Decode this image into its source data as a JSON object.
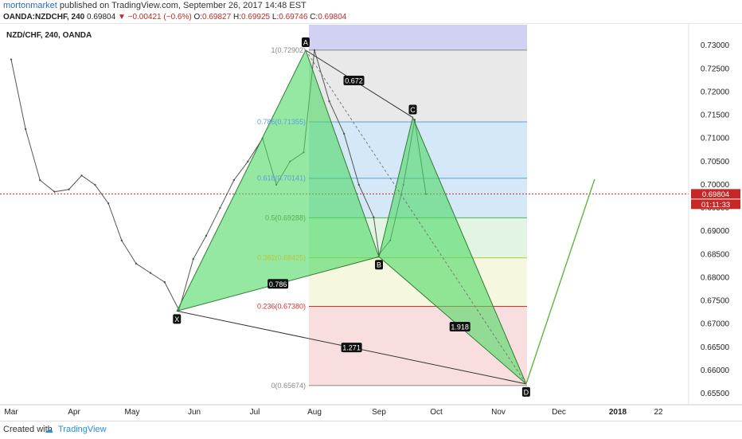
{
  "header": {
    "publisher": "mortonmarket",
    "published_text": " published on TradingView.com, September 26, 2017 14:48 EST",
    "symbol": "OANDA:NZDCHF, 240",
    "last": "0.69804",
    "change": "▼ −0.00421 (−0.6%)",
    "o_label": "O:",
    "o_value": "0.69827",
    "h_label": "H:",
    "h_value": "0.69925",
    "l_label": "L:",
    "l_value": "0.69746",
    "c_label": "C:",
    "c_value": "0.69804"
  },
  "footer": {
    "created": "Created with",
    "brand": "TradingView"
  },
  "colors": {
    "price_line": "#c62828",
    "harmonic_fill": "#4cd964",
    "fib_top": "#7b7bdc",
    "fib_786": "#5aa0e0",
    "fib_618": "#5aa0e0",
    "fib_5": "#55b055",
    "fib_382": "#b8c83a",
    "fib_236": "#d32f2f",
    "fib_0": "#888888",
    "projection_line": "#66bb44"
  },
  "chart_data": {
    "type": "line",
    "title": "NZD/CHF, 240, OANDA",
    "symbol": "NZDCHF",
    "timeframe": "240",
    "ylim": [
      0.652,
      0.734
    ],
    "y_ticks": [
      "0.73000",
      "0.72500",
      "0.72000",
      "0.71500",
      "0.71000",
      "0.70500",
      "0.70000",
      "0.69500",
      "0.69000",
      "0.68500",
      "0.68000",
      "0.67500",
      "0.67000",
      "0.66500",
      "0.66000",
      "0.65500"
    ],
    "x_ticks": [
      "Mar",
      "Apr",
      "May",
      "Jun",
      "Jul",
      "Aug",
      "Sep",
      "Oct",
      "Nov",
      "Dec",
      "2018",
      "22"
    ],
    "current_price": "0.69804",
    "countdown": "01:11:33",
    "price_series": {
      "x": [
        "Mar 01",
        "Mar 08",
        "Mar 15",
        "Mar 22",
        "Mar 29",
        "Apr 05",
        "Apr 12",
        "Apr 19",
        "Apr 26",
        "May 03",
        "May 10",
        "May 17",
        "May 24",
        "May 31",
        "Jun 07",
        "Jun 14",
        "Jun 21",
        "Jun 28",
        "Jul 05",
        "Jul 12",
        "Jul 19",
        "Jul 26",
        "Aug 01",
        "Aug 08",
        "Aug 15",
        "Aug 22",
        "Aug 29",
        "Sep 01",
        "Sep 07",
        "Sep 14",
        "Sep 20",
        "Sep 26"
      ],
      "y": [
        0.727,
        0.712,
        0.701,
        0.6985,
        0.699,
        0.702,
        0.7,
        0.696,
        0.688,
        0.683,
        0.681,
        0.679,
        0.673,
        0.684,
        0.689,
        0.695,
        0.701,
        0.705,
        0.71,
        0.7,
        0.705,
        0.707,
        0.729,
        0.718,
        0.711,
        0.7,
        0.693,
        0.685,
        0.688,
        0.7,
        0.714,
        0.698
      ]
    },
    "harmonic_pattern": {
      "points": [
        {
          "label": "X",
          "date": "May 23",
          "price": 0.6728
        },
        {
          "label": "A",
          "date": "Jul 27",
          "price": 0.729
        },
        {
          "label": "B",
          "date": "Sep 01",
          "price": 0.6845
        },
        {
          "label": "C",
          "date": "Sep 19",
          "price": 0.7145
        },
        {
          "label": "D",
          "date": "Nov 15",
          "price": 0.6571
        }
      ],
      "ratios": [
        "0.672",
        "0.786",
        "1.918",
        "1.271"
      ]
    },
    "fibonacci": {
      "levels": [
        {
          "label": "1(0.72902)",
          "price": 0.72902
        },
        {
          "label": "0.786(0.71355)",
          "price": 0.71355
        },
        {
          "label": "0.618(0.70141)",
          "price": 0.70141
        },
        {
          "label": "0.5(0.69288)",
          "price": 0.69288
        },
        {
          "label": "0.382(0.68425)",
          "price": 0.68425
        },
        {
          "label": "0.236(0.67380)",
          "price": 0.6738
        },
        {
          "label": "0(0.65674)",
          "price": 0.65674
        }
      ]
    },
    "projection": {
      "from": {
        "date": "Nov 15",
        "price": 0.6571
      },
      "to": {
        "date": "Dec 19",
        "price": 0.7012
      }
    }
  }
}
